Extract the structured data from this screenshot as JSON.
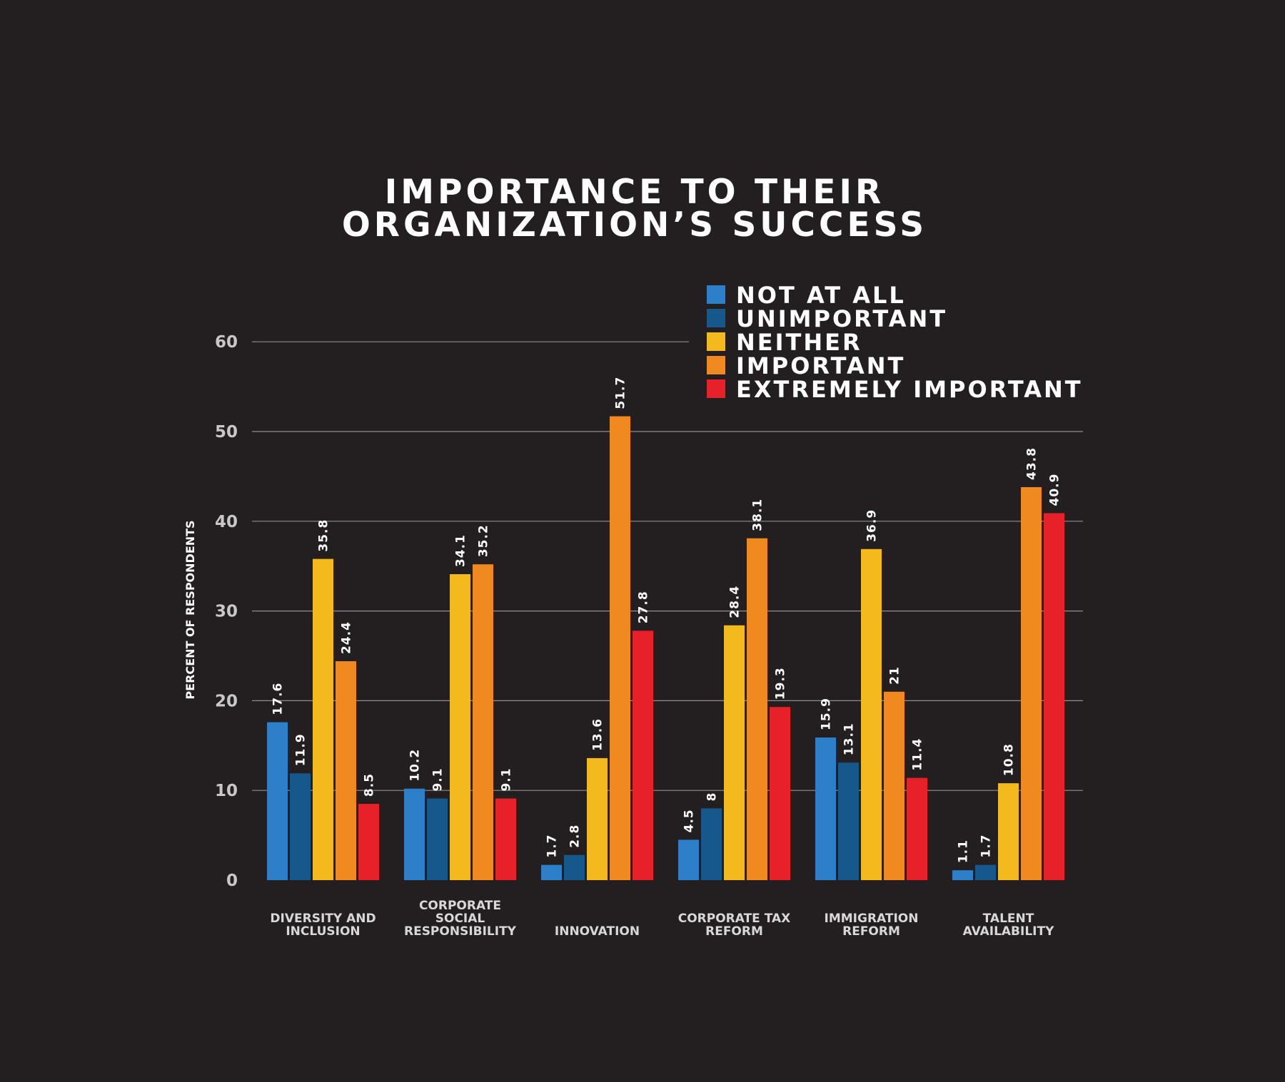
{
  "chart_data": {
    "type": "bar",
    "title": [
      "IMPORTANCE TO THEIR",
      "ORGANIZATION’S SUCCESS"
    ],
    "ylabel": "PERCENT OF RESPONDENTS",
    "xlabel": "",
    "ylim": [
      0,
      60
    ],
    "yticks": [
      0,
      10,
      20,
      30,
      40,
      50,
      60
    ],
    "grid": true,
    "legend_position": "top-right",
    "categories": [
      [
        "DIVERSITY AND",
        "INCLUSION"
      ],
      [
        "CORPORATE",
        "SOCIAL",
        "RESPONSIBILITY"
      ],
      [
        "INNOVATION"
      ],
      [
        "CORPORATE TAX",
        "REFORM"
      ],
      [
        "IMMIGRATION",
        "REFORM"
      ],
      [
        "TALENT",
        "AVAILABILITY"
      ]
    ],
    "series": [
      {
        "name": "NOT AT ALL",
        "color": "#2e7fc9",
        "values": [
          17.6,
          10.2,
          1.7,
          4.5,
          15.9,
          1.1
        ]
      },
      {
        "name": "UNIMPORTANT",
        "color": "#17588c",
        "values": [
          11.9,
          9.1,
          2.8,
          8,
          13.1,
          1.7
        ]
      },
      {
        "name": "NEITHER",
        "color": "#f4b91d",
        "values": [
          35.8,
          34.1,
          13.6,
          28.4,
          36.9,
          10.8
        ]
      },
      {
        "name": "IMPORTANT",
        "color": "#f0891f",
        "values": [
          24.4,
          35.2,
          51.7,
          38.1,
          21,
          43.8
        ]
      },
      {
        "name": "EXTREMELY IMPORTANT",
        "color": "#e8202a",
        "values": [
          8.5,
          9.1,
          27.8,
          19.3,
          11.4,
          40.9
        ]
      }
    ]
  }
}
